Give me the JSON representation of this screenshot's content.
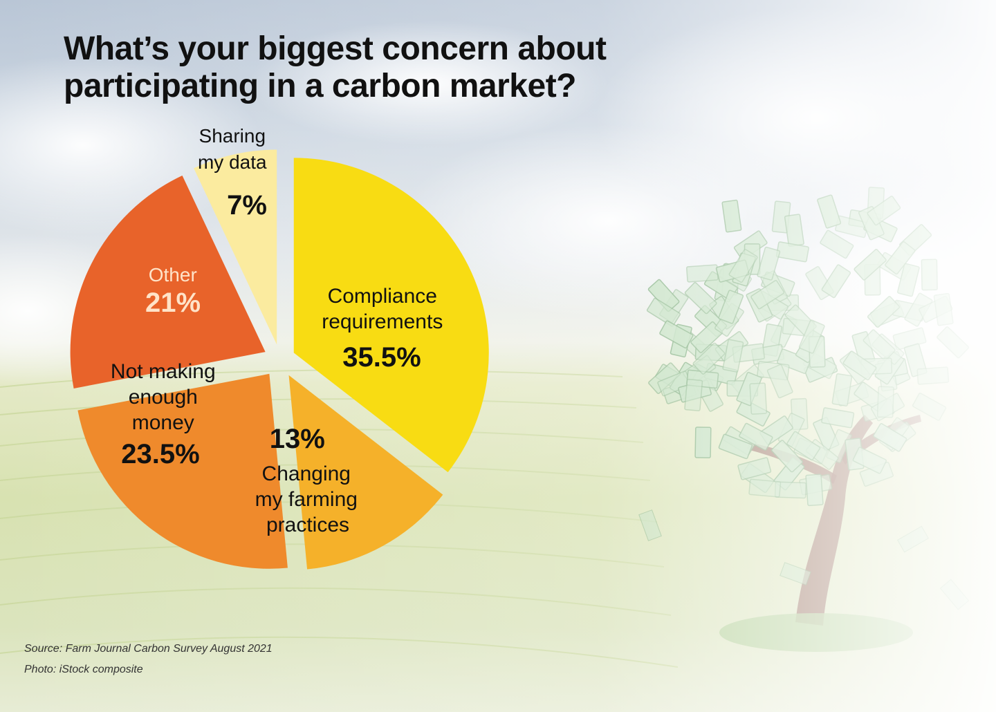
{
  "title": "What’s your biggest concern about participating in a carbon market?",
  "source": "Source: Farm Journal Carbon Survey August 2021",
  "photo_credit": "Photo: iStock composite",
  "chart_data": {
    "type": "pie",
    "title": "What’s your biggest concern about participating in a carbon market?",
    "slices": [
      {
        "label": "Compliance requirements",
        "value": 35.5,
        "display": "35.5%",
        "color": "#f8dc13"
      },
      {
        "label": "Changing my farming practices",
        "value": 13,
        "display": "13%",
        "color": "#f5b12a"
      },
      {
        "label": "Not making enough money",
        "value": 23.5,
        "display": "23.5%",
        "color": "#ef8a2c"
      },
      {
        "label": "Other",
        "value": 21,
        "display": "21%",
        "color": "#e8632a"
      },
      {
        "label": "Sharing my data",
        "value": 7,
        "display": "7%",
        "color": "#fbeb9f"
      }
    ]
  },
  "colors": {
    "other_label": "#ffe3c8",
    "bill_green": "#b9dbb6",
    "trunk": "#8a5a4a"
  }
}
